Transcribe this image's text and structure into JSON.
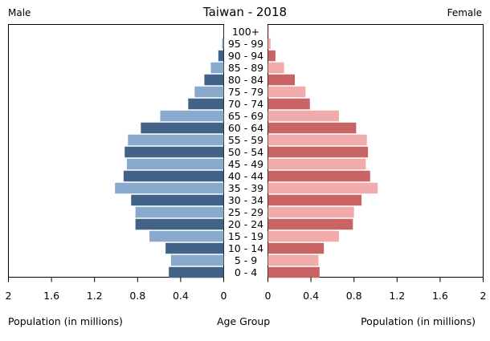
{
  "chart_data": {
    "type": "bar",
    "title": "Taiwan - 2018",
    "left_label": "Male",
    "right_label": "Female",
    "xlabel_left": "Population (in millions)",
    "xlabel_center": "Age Group",
    "xlabel_right": "Population (in millions)",
    "xlim": [
      0,
      2
    ],
    "x_ticks": [
      "2",
      "1.6",
      "1.2",
      "0.8",
      "0.4",
      "0"
    ],
    "x_ticks_right": [
      "0",
      "0.4",
      "0.8",
      "1.2",
      "1.6",
      "2"
    ],
    "categories": [
      "0 - 4",
      "5 - 9",
      "10 - 14",
      "15 - 19",
      "20 - 24",
      "25 - 29",
      "30 - 34",
      "35 - 39",
      "40 - 44",
      "45 - 49",
      "50 - 54",
      "55 - 59",
      "60 - 64",
      "65 - 69",
      "70 - 74",
      "75 - 79",
      "80 - 84",
      "85 - 89",
      "90 - 94",
      "95 - 99",
      "100+"
    ],
    "series": [
      {
        "name": "Male",
        "values": [
          0.51,
          0.49,
          0.54,
          0.69,
          0.82,
          0.82,
          0.86,
          1.01,
          0.93,
          0.9,
          0.92,
          0.89,
          0.77,
          0.59,
          0.33,
          0.27,
          0.18,
          0.12,
          0.05,
          0.015,
          0.003
        ]
      },
      {
        "name": "Female",
        "values": [
          0.48,
          0.47,
          0.52,
          0.66,
          0.79,
          0.8,
          0.87,
          1.02,
          0.95,
          0.91,
          0.93,
          0.92,
          0.82,
          0.66,
          0.39,
          0.35,
          0.25,
          0.15,
          0.07,
          0.025,
          0.006
        ]
      }
    ],
    "colors": {
      "male_dark": "#426387",
      "male_light": "#8aaacd",
      "female_dark": "#c96464",
      "female_light": "#f2abab",
      "axis": "#000000"
    }
  }
}
